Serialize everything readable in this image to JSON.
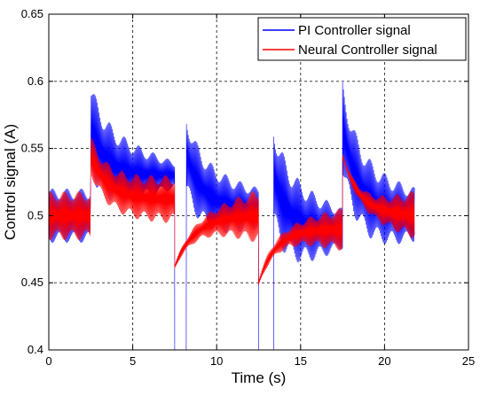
{
  "chart_data": {
    "type": "line",
    "xlabel": "Time (s)",
    "ylabel": "Control signal (A)",
    "xlim": [
      0,
      25
    ],
    "ylim": [
      0.4,
      0.65
    ],
    "xticks": [
      0,
      5,
      10,
      15,
      20,
      25
    ],
    "yticks": [
      0.4,
      0.45,
      0.5,
      0.55,
      0.6,
      0.65
    ],
    "xtick_labels": [
      "0",
      "5",
      "10",
      "15",
      "20",
      "25"
    ],
    "ytick_labels": [
      "0.4",
      "0.45",
      "0.5",
      "0.55",
      "0.6",
      "0.65"
    ],
    "grid": true,
    "legend_position": "top-right",
    "series": [
      {
        "name": "PI Controller signal",
        "color": "#0000ff",
        "x_end": 21.8,
        "segments": [
          {
            "t0": 0.0,
            "t1": 2.5,
            "start": 0.5,
            "end": 0.5,
            "tau": 1.0,
            "amp0": 0.02,
            "amp1": 0.02
          },
          {
            "t0": 2.5,
            "t1": 7.5,
            "start": 0.565,
            "end": 0.53,
            "tau": 0.9,
            "amp0": 0.035,
            "amp1": 0.01
          },
          {
            "t0": 7.5,
            "t1": 8.2,
            "start": 0.4,
            "end": 0.4,
            "tau": 1.0,
            "amp0": 0.0,
            "amp1": 0.0,
            "edge": true
          },
          {
            "t0": 8.2,
            "t1": 12.5,
            "start": 0.545,
            "end": 0.505,
            "tau": 1.0,
            "amp0": 0.03,
            "amp1": 0.015
          },
          {
            "t0": 12.5,
            "t1": 13.4,
            "start": 0.4,
            "end": 0.4,
            "tau": 1.0,
            "amp0": 0.0,
            "amp1": 0.0,
            "edge": true
          },
          {
            "t0": 13.4,
            "t1": 17.5,
            "start": 0.53,
            "end": 0.49,
            "tau": 0.8,
            "amp0": 0.04,
            "amp1": 0.015
          },
          {
            "t0": 17.5,
            "t1": 21.8,
            "start": 0.565,
            "end": 0.5,
            "tau": 1.0,
            "amp0": 0.035,
            "amp1": 0.02
          }
        ]
      },
      {
        "name": "Neural Controller signal",
        "color": "#ff0000",
        "x_end": 21.8,
        "segments": [
          {
            "t0": 0.0,
            "t1": 2.5,
            "start": 0.5,
            "end": 0.5,
            "tau": 1.0,
            "amp0": 0.018,
            "amp1": 0.018
          },
          {
            "t0": 2.5,
            "t1": 7.5,
            "start": 0.545,
            "end": 0.512,
            "tau": 1.0,
            "amp0": 0.015,
            "amp1": 0.018
          },
          {
            "t0": 7.5,
            "t1": 12.5,
            "start": 0.462,
            "end": 0.5,
            "tau": 1.2,
            "amp0": 0.002,
            "amp1": 0.02
          },
          {
            "t0": 12.5,
            "t1": 17.5,
            "start": 0.45,
            "end": 0.49,
            "tau": 1.0,
            "amp0": 0.003,
            "amp1": 0.016
          },
          {
            "t0": 17.5,
            "t1": 21.8,
            "start": 0.545,
            "end": 0.5,
            "tau": 1.0,
            "amp0": 0.002,
            "amp1": 0.018
          }
        ]
      }
    ]
  }
}
